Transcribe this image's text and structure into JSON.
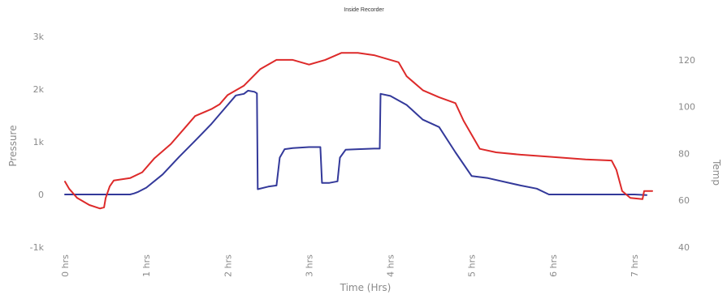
{
  "chart_data": {
    "type": "line",
    "title": "Inside Recorder",
    "xlabel": "Time (Hrs)",
    "ylabel": "Pressure",
    "y2label": "Temp",
    "xlim": [
      -0.05,
      7.25
    ],
    "ylim": [
      -1000,
      3000
    ],
    "y2lim": [
      40,
      130
    ],
    "x_ticks": [
      0,
      1,
      2,
      3,
      4,
      5,
      6,
      7
    ],
    "x_tick_labels": [
      "0 hrs",
      "1 hrs",
      "2 hrs",
      "3 hrs",
      "4 hrs",
      "5 hrs",
      "6 hrs",
      "7 hrs"
    ],
    "y_ticks": [
      -1000,
      0,
      1000,
      2000,
      3000
    ],
    "y_tick_labels": [
      "-1k",
      "0",
      "1k",
      "2k",
      "3k"
    ],
    "y2_ticks": [
      40,
      60,
      80,
      100,
      120
    ],
    "y2_tick_labels": [
      "40",
      "60",
      "80",
      "100",
      "120"
    ],
    "grid": false,
    "legend": "none",
    "series": [
      {
        "axis": "left",
        "color": "#33399a",
        "points": [
          [
            0,
            0
          ],
          [
            0.35,
            0
          ],
          [
            0.7,
            0
          ],
          [
            0.8,
            0
          ],
          [
            0.85,
            20
          ],
          [
            0.9,
            50
          ],
          [
            1.0,
            130
          ],
          [
            1.2,
            380
          ],
          [
            1.4,
            710
          ],
          [
            1.6,
            1020
          ],
          [
            1.8,
            1340
          ],
          [
            2.0,
            1700
          ],
          [
            2.1,
            1880
          ],
          [
            2.2,
            1910
          ],
          [
            2.25,
            1970
          ],
          [
            2.33,
            1950
          ],
          [
            2.36,
            1920
          ],
          [
            2.37,
            100
          ],
          [
            2.5,
            150
          ],
          [
            2.6,
            170
          ],
          [
            2.64,
            700
          ],
          [
            2.7,
            860
          ],
          [
            2.8,
            880
          ],
          [
            3.0,
            900
          ],
          [
            3.14,
            900
          ],
          [
            3.16,
            220
          ],
          [
            3.25,
            220
          ],
          [
            3.35,
            250
          ],
          [
            3.38,
            700
          ],
          [
            3.45,
            850
          ],
          [
            3.6,
            860
          ],
          [
            3.8,
            870
          ],
          [
            3.87,
            870
          ],
          [
            3.88,
            1910
          ],
          [
            4.0,
            1870
          ],
          [
            4.2,
            1700
          ],
          [
            4.4,
            1420
          ],
          [
            4.6,
            1280
          ],
          [
            4.8,
            800
          ],
          [
            5.0,
            350
          ],
          [
            5.2,
            310
          ],
          [
            5.6,
            170
          ],
          [
            5.8,
            110
          ],
          [
            5.95,
            0
          ],
          [
            6.2,
            0
          ],
          [
            6.6,
            0
          ],
          [
            7.0,
            0
          ],
          [
            7.15,
            -10
          ]
        ]
      },
      {
        "axis": "right",
        "color": "#dd2a2a",
        "points": [
          [
            0,
            68
          ],
          [
            0.05,
            65
          ],
          [
            0.15,
            61
          ],
          [
            0.3,
            58
          ],
          [
            0.43,
            56.5
          ],
          [
            0.48,
            57
          ],
          [
            0.5,
            61
          ],
          [
            0.55,
            66
          ],
          [
            0.6,
            68.5
          ],
          [
            0.8,
            69.5
          ],
          [
            0.95,
            72
          ],
          [
            1.1,
            78
          ],
          [
            1.3,
            84
          ],
          [
            1.5,
            92
          ],
          [
            1.6,
            96
          ],
          [
            1.8,
            99
          ],
          [
            1.9,
            101
          ],
          [
            2.0,
            105
          ],
          [
            2.2,
            109
          ],
          [
            2.4,
            116
          ],
          [
            2.6,
            120
          ],
          [
            2.8,
            120
          ],
          [
            3.0,
            118
          ],
          [
            3.2,
            120
          ],
          [
            3.4,
            123
          ],
          [
            3.6,
            123
          ],
          [
            3.8,
            122
          ],
          [
            4.0,
            120
          ],
          [
            4.1,
            119
          ],
          [
            4.2,
            113
          ],
          [
            4.4,
            107
          ],
          [
            4.6,
            104
          ],
          [
            4.8,
            101.5
          ],
          [
            4.9,
            94
          ],
          [
            5.1,
            82
          ],
          [
            5.3,
            80.5
          ],
          [
            5.6,
            79.5
          ],
          [
            6.0,
            78.5
          ],
          [
            6.4,
            77.5
          ],
          [
            6.72,
            77
          ],
          [
            6.78,
            73
          ],
          [
            6.85,
            64
          ],
          [
            6.95,
            61
          ],
          [
            7.1,
            60.5
          ],
          [
            7.12,
            64
          ],
          [
            7.22,
            64
          ]
        ]
      }
    ]
  }
}
